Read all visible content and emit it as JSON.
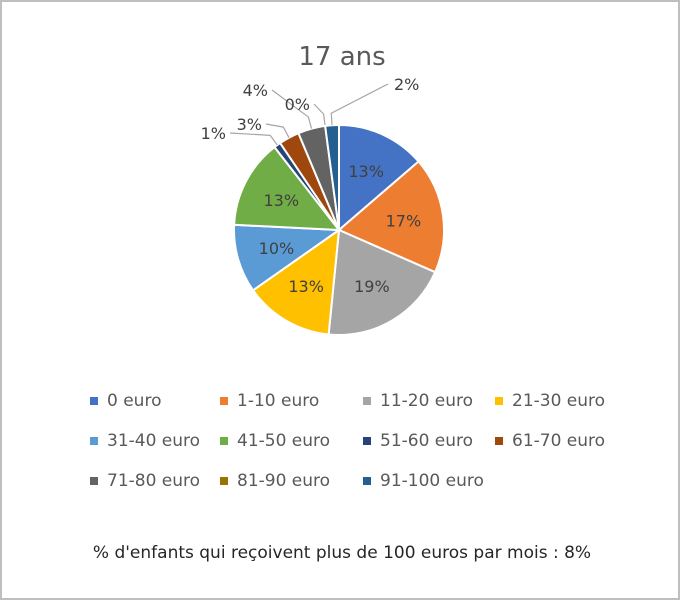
{
  "chart_data": {
    "type": "pie",
    "title": "17 ans",
    "categories": [
      "0 euro",
      "1-10 euro",
      "11-20 euro",
      "21-30 euro",
      "31-40 euro",
      "41-50 euro",
      "51-60 euro",
      "61-70 euro",
      "71-80 euro",
      "81-90 euro",
      "91-100 euro"
    ],
    "values": [
      13,
      17,
      19,
      13,
      10,
      13,
      1,
      3,
      4,
      0,
      2
    ],
    "labels": [
      "13%",
      "17%",
      "19%",
      "13%",
      "10%",
      "13%",
      "1%",
      "3%",
      "4%",
      "0%",
      "2%"
    ],
    "colors": [
      "#4472C4",
      "#ED7D31",
      "#A5A5A5",
      "#FFC000",
      "#5B9BD5",
      "#70AD47",
      "#264478",
      "#9E480E",
      "#636363",
      "#997300",
      "#255E91"
    ],
    "legend_position": "bottom"
  },
  "footnote": "% d'enfants qui reçoivent plus de 100 euros par mois : 8%"
}
